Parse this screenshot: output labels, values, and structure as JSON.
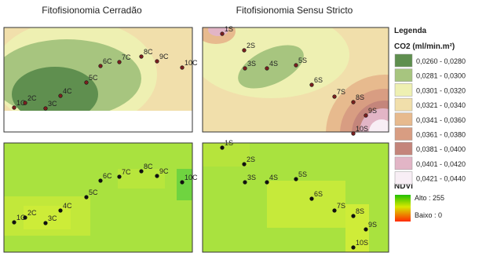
{
  "titles": [
    "Fitofisionomia Cerradão",
    "Fitofisionomia Sensu Stricto"
  ],
  "legend": {
    "title": "Legenda",
    "co2_title": "CO2 (ml/min.m²)",
    "classes": [
      {
        "label": "0,0260 - 0,0280",
        "color": "#5f8f4f"
      },
      {
        "label": "0,0281 - 0,0300",
        "color": "#a7c57f"
      },
      {
        "label": "0,0301 - 0,0320",
        "color": "#eef0b2"
      },
      {
        "label": "0,0321 - 0,0340",
        "color": "#f1dfab"
      },
      {
        "label": "0,0341 - 0,0360",
        "color": "#e7ba8e"
      },
      {
        "label": "0,0361 - 0,0380",
        "color": "#d89d82"
      },
      {
        "label": "0,0381 - 0,0400",
        "color": "#c4857b"
      },
      {
        "label": "0,0401 - 0,0420",
        "color": "#e2b5c6"
      },
      {
        "label": "0,0421 - 0,0440",
        "color": "#f8eef5"
      }
    ],
    "ndvi_title": "NDVI",
    "ndvi_high": "Alto : 255",
    "ndvi_low": "Baixo : 0"
  },
  "points": {
    "cerradao": [
      "1C",
      "2C",
      "3C",
      "4C",
      "5C",
      "6C",
      "7C",
      "8C",
      "9C",
      "10C"
    ],
    "sensu_stricto": [
      "1S",
      "2S",
      "3S",
      "4S",
      "5S",
      "6S",
      "7S",
      "8S",
      "9S",
      "10S"
    ]
  }
}
